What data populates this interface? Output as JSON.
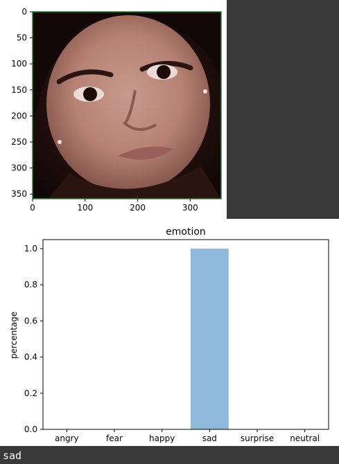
{
  "image_plot": {
    "subject": "close-up portrait photo of a face",
    "x_ticks": [
      "0",
      "100",
      "200",
      "300"
    ],
    "y_ticks": [
      "0",
      "50",
      "100",
      "150",
      "200",
      "250",
      "300",
      "350"
    ],
    "frame_color": "#2e7d32",
    "x_range": [
      0,
      359
    ],
    "y_range": [
      0,
      359
    ]
  },
  "chart_data": {
    "type": "bar",
    "title": "emotion",
    "xlabel": "",
    "ylabel": "percentage",
    "categories": [
      "angry",
      "fear",
      "happy",
      "sad",
      "surprise",
      "neutral"
    ],
    "values": [
      0,
      0,
      0,
      1.0,
      0,
      0
    ],
    "ylim": [
      0,
      1.05
    ],
    "y_ticks": [
      "0.0",
      "0.2",
      "0.4",
      "0.6",
      "0.8",
      "1.0"
    ],
    "bar_color": "#8fb9da",
    "grid": false
  },
  "output": {
    "text": "sad"
  }
}
